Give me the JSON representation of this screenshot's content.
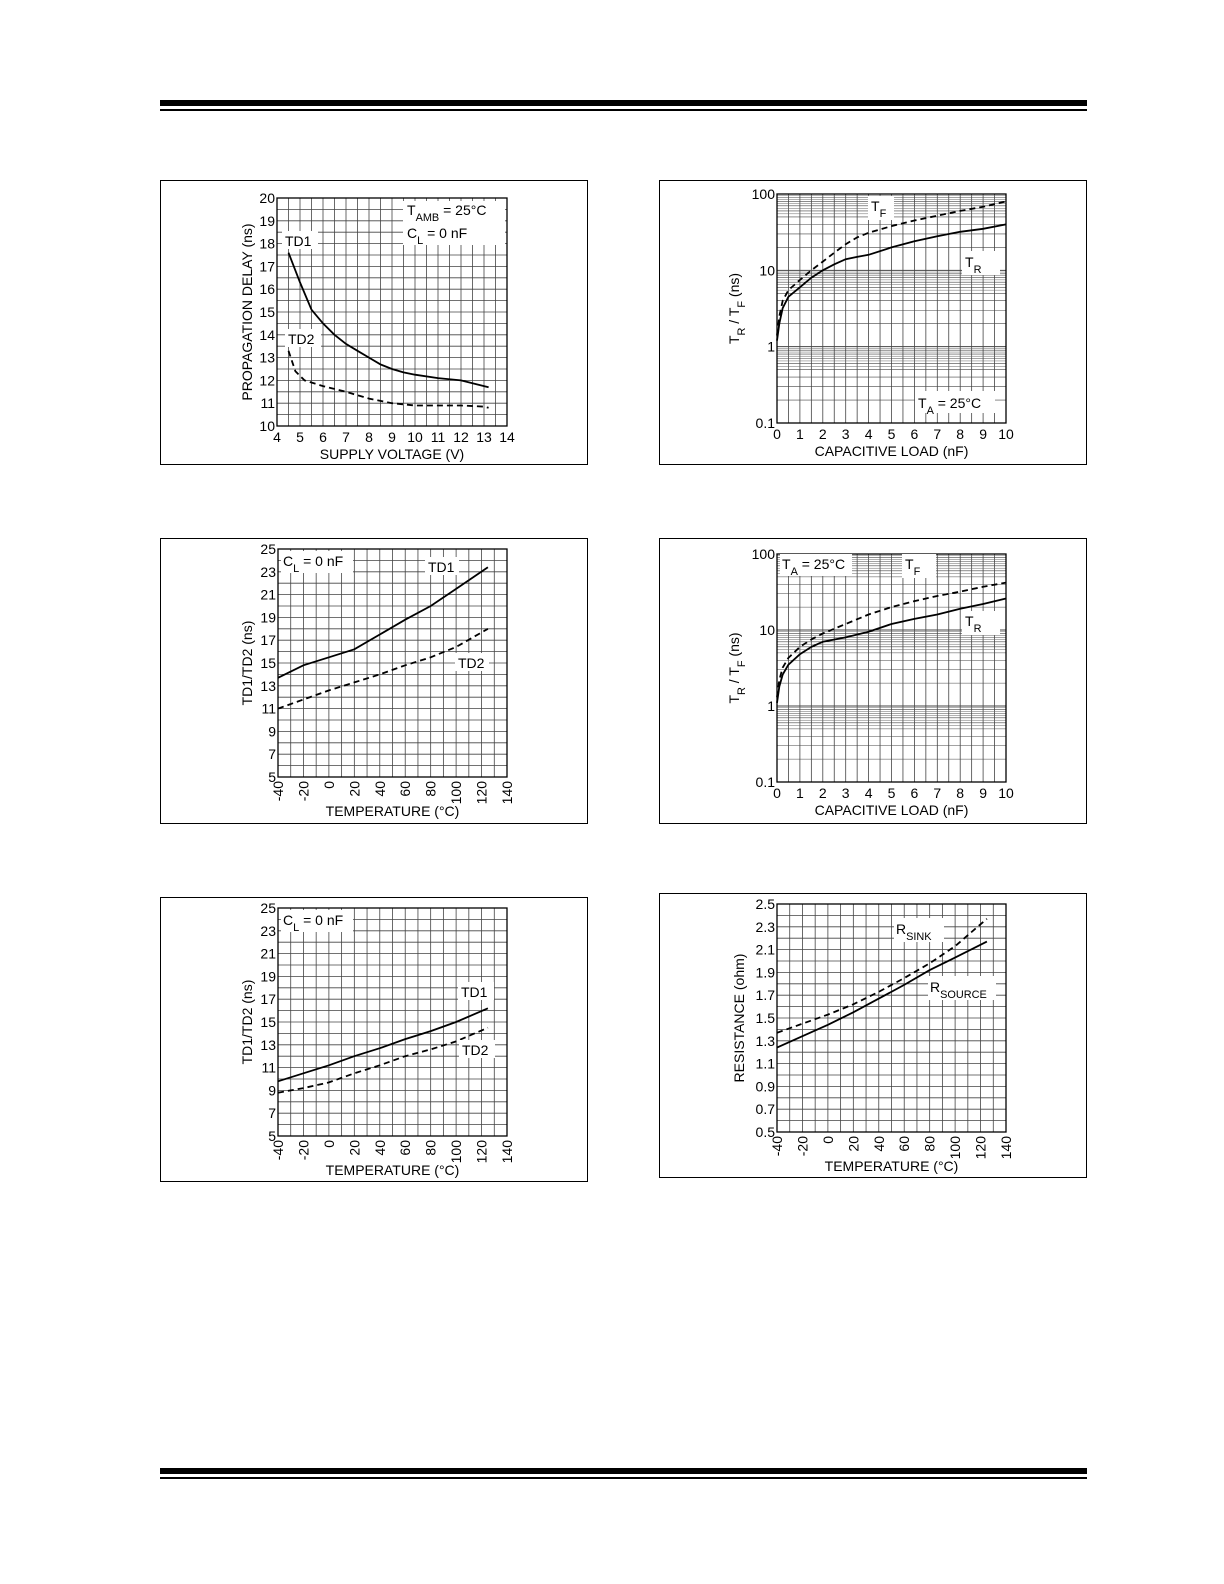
{
  "charts": [
    {
      "id": "c1",
      "xlabel": "SUPPLY VOLTAGE (V)",
      "ylabel": "PROPAGATION DELAY (ns)",
      "annotation": [
        {
          "main": "T",
          "sub": "AMB",
          "rest": " = 25°C"
        },
        {
          "main": "C",
          "sub": "L",
          "rest": " = 0 nF"
        }
      ],
      "series_labels": [
        "TD1",
        "TD2"
      ],
      "xticks": [
        "4",
        "5",
        "6",
        "7",
        "8",
        "9",
        "10",
        "11",
        "12",
        "13",
        "14"
      ],
      "yticks": [
        "10",
        "11",
        "12",
        "13",
        "14",
        "15",
        "16",
        "17",
        "18",
        "19",
        "20"
      ]
    },
    {
      "id": "c2",
      "xlabel": "CAPACITIVE LOAD (nF)",
      "ylabel": {
        "p1": "T",
        "s1": "R",
        "p2": " / T",
        "s2": "F",
        "p3": " (ns)"
      },
      "annotation": [
        {
          "main": "T",
          "sub": "A",
          "rest": " = 25°C"
        }
      ],
      "series_labels": [
        {
          "main": "T",
          "sub": "F"
        },
        {
          "main": "T",
          "sub": "R"
        }
      ],
      "xticks": [
        "0",
        "1",
        "2",
        "3",
        "4",
        "5",
        "6",
        "7",
        "8",
        "9",
        "10"
      ],
      "yticks": [
        "0.1",
        "1",
        "10",
        "100"
      ]
    },
    {
      "id": "c3",
      "xlabel": "TEMPERATURE (°C)",
      "ylabel": "TD1/TD2 (ns)",
      "annotation": [
        {
          "main": "C",
          "sub": "L",
          "rest": " = 0 nF"
        }
      ],
      "series_labels": [
        "TD1",
        "TD2"
      ],
      "xticks": [
        "-40",
        "-20",
        "0",
        "20",
        "40",
        "60",
        "80",
        "100",
        "120",
        "140"
      ],
      "yticks": [
        "5",
        "7",
        "9",
        "11",
        "13",
        "15",
        "17",
        "19",
        "21",
        "23",
        "25"
      ]
    },
    {
      "id": "c4",
      "xlabel": "CAPACITIVE LOAD (nF)",
      "ylabel": {
        "p1": "T",
        "s1": "R",
        "p2": " / T",
        "s2": "F",
        "p3": " (ns)"
      },
      "annotation": [
        {
          "main": "T",
          "sub": "A",
          "rest": " = 25°C"
        }
      ],
      "series_labels": [
        {
          "main": "T",
          "sub": "F"
        },
        {
          "main": "T",
          "sub": "R"
        }
      ],
      "xticks": [
        "0",
        "1",
        "2",
        "3",
        "4",
        "5",
        "6",
        "7",
        "8",
        "9",
        "10"
      ],
      "yticks": [
        "0.1",
        "1",
        "10",
        "100"
      ]
    },
    {
      "id": "c5",
      "xlabel": "TEMPERATURE (°C)",
      "ylabel": "TD1/TD2 (ns)",
      "annotation": [
        {
          "main": "C",
          "sub": "L",
          "rest": " = 0 nF"
        }
      ],
      "series_labels": [
        "TD1",
        "TD2"
      ],
      "xticks": [
        "-40",
        "-20",
        "0",
        "20",
        "40",
        "60",
        "80",
        "100",
        "120",
        "140"
      ],
      "yticks": [
        "5",
        "7",
        "9",
        "11",
        "13",
        "15",
        "17",
        "19",
        "21",
        "23",
        "25"
      ]
    },
    {
      "id": "c6",
      "xlabel": "TEMPERATURE (°C)",
      "ylabel": "RESISTANCE (ohm)",
      "annotation": [],
      "series_labels": [
        {
          "main": "R",
          "sub": "SINK"
        },
        {
          "main": "R",
          "sub": "SOURCE"
        }
      ],
      "xticks": [
        "-40",
        "-20",
        "0",
        "20",
        "40",
        "60",
        "80",
        "100",
        "120",
        "140"
      ],
      "yticks": [
        "0.5",
        "0.7",
        "0.9",
        "1.1",
        "1.3",
        "1.5",
        "1.7",
        "1.9",
        "2.1",
        "2.3",
        "2.5"
      ]
    }
  ],
  "chart_data": [
    {
      "type": "line",
      "xlabel": "SUPPLY VOLTAGE (V)",
      "ylabel": "PROPAGATION DELAY (ns)",
      "xlim": [
        4,
        14
      ],
      "ylim": [
        10,
        20
      ],
      "grid": true,
      "series": [
        {
          "name": "TD1",
          "style": "solid",
          "x": [
            4.5,
            5.0,
            5.5,
            6.0,
            6.5,
            7.0,
            7.5,
            8.0,
            8.5,
            9.0,
            9.5,
            10.0,
            11.0,
            12.0,
            13.0,
            13.2
          ],
          "y": [
            17.6,
            16.3,
            15.1,
            14.5,
            14.0,
            13.6,
            13.3,
            13.0,
            12.7,
            12.5,
            12.35,
            12.25,
            12.1,
            12.0,
            11.75,
            11.7
          ]
        },
        {
          "name": "TD2",
          "style": "dashed",
          "x": [
            4.5,
            4.8,
            5.2,
            6.0,
            7.0,
            8.0,
            9.0,
            10.0,
            11.0,
            12.0,
            13.0,
            13.2
          ],
          "y": [
            13.3,
            12.4,
            12.0,
            11.75,
            11.5,
            11.2,
            11.0,
            10.9,
            10.9,
            10.9,
            10.85,
            10.8
          ]
        }
      ]
    },
    {
      "type": "line",
      "xlabel": "CAPACITIVE LOAD (nF)",
      "xlim": [
        0,
        10
      ],
      "ylim": [
        0.1,
        100
      ],
      "yscale": "log",
      "grid": true,
      "series": [
        {
          "style": "dashed",
          "x": [
            0,
            0.1,
            0.25,
            0.5,
            1,
            1.5,
            2,
            2.5,
            3,
            3.5,
            4,
            5,
            6,
            7,
            8,
            9,
            10
          ],
          "y": [
            1.4,
            2.5,
            4.0,
            5.5,
            7.5,
            10,
            13,
            17,
            22,
            27,
            31,
            38,
            45,
            52,
            60,
            68,
            80
          ]
        },
        {
          "style": "solid",
          "x": [
            0,
            0.1,
            0.25,
            0.5,
            1,
            1.5,
            2,
            2.5,
            3,
            3.5,
            4,
            5,
            6,
            7,
            8,
            9,
            10
          ],
          "y": [
            1.2,
            2.0,
            3.2,
            4.5,
            6.0,
            8.0,
            10,
            12,
            14,
            15,
            16,
            20,
            24,
            28,
            32,
            35,
            40
          ]
        }
      ]
    },
    {
      "type": "line",
      "xlabel": "TEMPERATURE (°C)",
      "ylabel": "TD1/TD2 (ns)",
      "xlim": [
        -40,
        140
      ],
      "ylim": [
        5,
        25
      ],
      "grid": true,
      "series": [
        {
          "name": "TD1",
          "style": "solid",
          "x": [
            -40,
            -20,
            0,
            20,
            40,
            60,
            80,
            100,
            125
          ],
          "y": [
            13.7,
            14.8,
            15.5,
            16.2,
            17.5,
            18.8,
            20.0,
            21.5,
            23.4
          ]
        },
        {
          "name": "TD2",
          "style": "dashed",
          "x": [
            -40,
            -20,
            0,
            20,
            40,
            60,
            80,
            100,
            125
          ],
          "y": [
            11.0,
            11.8,
            12.6,
            13.3,
            14.0,
            14.8,
            15.5,
            16.4,
            18.0
          ]
        }
      ]
    },
    {
      "type": "line",
      "xlabel": "CAPACITIVE LOAD (nF)",
      "xlim": [
        0,
        10
      ],
      "ylim": [
        0.1,
        100
      ],
      "yscale": "log",
      "grid": true,
      "series": [
        {
          "style": "dashed",
          "x": [
            0,
            0.1,
            0.25,
            0.5,
            1,
            1.5,
            2,
            3,
            4,
            5,
            6,
            7,
            8,
            9,
            10
          ],
          "y": [
            1.3,
            2.2,
            3.2,
            4.3,
            6.0,
            7.5,
            9.0,
            12,
            16,
            20,
            24,
            28,
            32,
            37,
            42
          ]
        },
        {
          "style": "solid",
          "x": [
            0,
            0.1,
            0.25,
            0.5,
            1,
            1.5,
            2,
            3,
            4,
            5,
            6,
            7,
            8,
            9,
            10
          ],
          "y": [
            1.1,
            1.8,
            2.6,
            3.5,
            4.8,
            6.0,
            7.0,
            8.0,
            9.5,
            12,
            14,
            16,
            19,
            22,
            26
          ]
        }
      ]
    },
    {
      "type": "line",
      "xlabel": "TEMPERATURE (°C)",
      "ylabel": "TD1/TD2 (ns)",
      "xlim": [
        -40,
        140
      ],
      "ylim": [
        5,
        25
      ],
      "grid": true,
      "series": [
        {
          "name": "TD1",
          "style": "solid",
          "x": [
            -40,
            -20,
            0,
            20,
            40,
            60,
            80,
            100,
            125
          ],
          "y": [
            9.8,
            10.5,
            11.2,
            12.0,
            12.7,
            13.5,
            14.2,
            15.0,
            16.2
          ]
        },
        {
          "name": "TD2",
          "style": "dashed",
          "x": [
            -40,
            -20,
            0,
            20,
            40,
            60,
            80,
            100,
            125
          ],
          "y": [
            8.8,
            9.2,
            9.7,
            10.5,
            11.2,
            12.0,
            12.6,
            13.3,
            14.5
          ]
        }
      ]
    },
    {
      "type": "line",
      "xlabel": "TEMPERATURE (°C)",
      "ylabel": "RESISTANCE (ohm)",
      "xlim": [
        -40,
        140
      ],
      "ylim": [
        0.5,
        2.5
      ],
      "grid": true,
      "series": [
        {
          "style": "dashed",
          "x": [
            -40,
            -20,
            0,
            20,
            40,
            60,
            80,
            100,
            125
          ],
          "y": [
            1.37,
            1.45,
            1.53,
            1.62,
            1.73,
            1.85,
            1.98,
            2.13,
            2.37
          ]
        },
        {
          "style": "solid",
          "x": [
            -40,
            -20,
            0,
            20,
            40,
            60,
            80,
            100,
            125
          ],
          "y": [
            1.24,
            1.34,
            1.44,
            1.55,
            1.67,
            1.79,
            1.92,
            2.03,
            2.17
          ]
        }
      ]
    }
  ]
}
